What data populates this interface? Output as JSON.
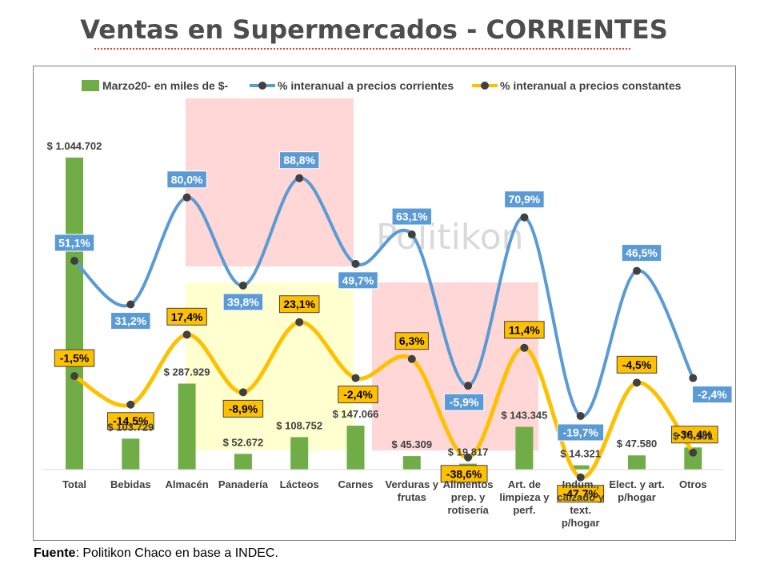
{
  "title": "Ventas en Supermercados - CORRIENTES",
  "watermark": "Politikon",
  "source": {
    "label": "Fuente",
    "text": ": Politikon Chaco en base a INDEC."
  },
  "colors": {
    "bar": "#70ad47",
    "corrientes": "#5b9bd5",
    "constantes": "#ffc000",
    "marker": "#404040",
    "highlight_red": "#ffd7d7",
    "highlight_yellow": "#ffffd0"
  },
  "chart_data": {
    "type": "bar",
    "categories": [
      [
        "Total"
      ],
      [
        "Bebidas"
      ],
      [
        "Almacén"
      ],
      [
        "Panadería"
      ],
      [
        "Lácteos"
      ],
      [
        "Carnes"
      ],
      [
        "Verduras y",
        "frutas"
      ],
      [
        "Alimentos",
        "prep. y",
        "rotisería"
      ],
      [
        "Art. de",
        "limpieza y",
        "perf."
      ],
      [
        "Indum.,",
        "calzado y",
        "text.",
        "p/hogar"
      ],
      [
        "Elect. y art.",
        "p/hogar"
      ],
      [
        "Otros"
      ]
    ],
    "legend_position": "top",
    "grid": false,
    "series": [
      {
        "name": "Marzo20- en miles de $-",
        "kind": "bar",
        "values": [
          1044702,
          103729,
          287929,
          52672,
          108752,
          147066,
          45309,
          19817,
          143345,
          14321,
          47580,
          74181
        ],
        "labels": [
          "$ 1.044.702",
          "$ 103.729",
          "$ 287.929",
          "$ 52.672",
          "$ 108.752",
          "$ 147.066",
          "$ 45.309",
          "$ 19.817",
          "$ 143.345",
          "$ 14.321",
          "$ 47.580",
          "$ 74.181"
        ]
      },
      {
        "name": "% interanual a precios corrientes",
        "kind": "line",
        "values": [
          51.1,
          31.2,
          80.0,
          39.8,
          88.8,
          49.7,
          63.1,
          -5.9,
          70.9,
          -19.7,
          46.5,
          -2.4
        ],
        "labels": [
          "51,1%",
          "31,2%",
          "80,0%",
          "39,8%",
          "88,8%",
          "49,7%",
          "63,1%",
          "-5,9%",
          "70,9%",
          "-19,7%",
          "46,5%",
          "-2,4%"
        ]
      },
      {
        "name": "% interanual a precios constantes",
        "kind": "line",
        "values": [
          -1.5,
          -14.5,
          17.4,
          -8.9,
          23.1,
          -2.4,
          6.3,
          -38.6,
          11.4,
          -47.7,
          -4.5,
          -36.4
        ],
        "labels": [
          "-1,5%",
          "-14,5%",
          "17,4%",
          "-8,9%",
          "23,1%",
          "-2,4%",
          "6,3%",
          "-38,6%",
          "11,4%",
          "-47,7%",
          "-4,5%",
          "-36,4%"
        ]
      }
    ]
  }
}
